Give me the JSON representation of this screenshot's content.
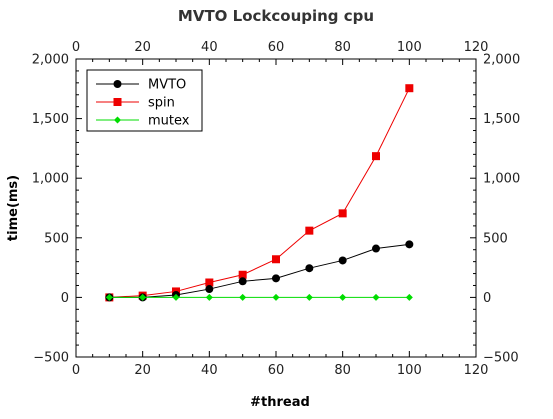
{
  "chart_data": {
    "type": "line",
    "title": "MVTO Lockcouping cpu",
    "xlabel": "#thread",
    "ylabel": "time(ms)",
    "xlim": [
      0,
      120
    ],
    "ylim": [
      -500,
      2000
    ],
    "x_ticks": [
      0,
      20,
      40,
      60,
      80,
      100,
      120
    ],
    "x_tick_labels": [
      "0",
      "20",
      "40",
      "60",
      "80",
      "100",
      "120"
    ],
    "y_ticks": [
      -500,
      0,
      500,
      1000,
      1500,
      2000
    ],
    "y_tick_labels": [
      "−500",
      "0",
      "500",
      "1,000",
      "1,500",
      "2,000"
    ],
    "x_tick_labels_top": [
      "0",
      "20",
      "40",
      "60",
      "80",
      "100",
      "120"
    ],
    "y_tick_labels_right": [
      "−500",
      "0",
      "500",
      "1,000",
      "1,500",
      "2,000"
    ],
    "grid": false,
    "legend_position": "top-left",
    "x": [
      10,
      20,
      30,
      40,
      50,
      60,
      70,
      80,
      90,
      100
    ],
    "series": [
      {
        "name": "MVTO",
        "color": "#000000",
        "marker": "circle",
        "values": [
          0,
          0,
          20,
          70,
          135,
          160,
          245,
          310,
          410,
          445
        ]
      },
      {
        "name": "spin",
        "color": "#ee0000",
        "marker": "square",
        "values": [
          0,
          15,
          50,
          125,
          190,
          320,
          560,
          705,
          1185,
          1755
        ]
      },
      {
        "name": "mutex",
        "color": "#00dd00",
        "marker": "diamond",
        "values": [
          0,
          0,
          0,
          0,
          0,
          0,
          0,
          0,
          0,
          0
        ]
      }
    ]
  }
}
